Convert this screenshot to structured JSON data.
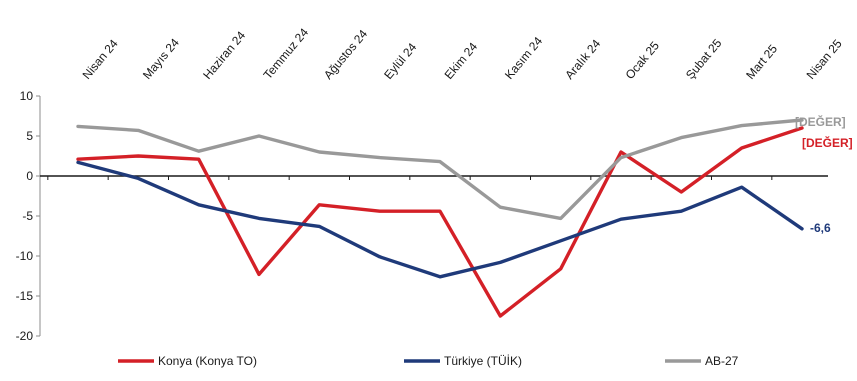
{
  "chart_data": {
    "type": "line",
    "title": "",
    "xlabel": "",
    "ylabel": "",
    "categories": [
      "Nisan 24",
      "Mayıs 24",
      "Haziran 24",
      "Temmuz 24",
      "Ağustos 24",
      "Eylül 24",
      "Ekim 24",
      "Kasım 24",
      "Aralık 24",
      "Ocak 25",
      "Şubat 25",
      "Mart 25",
      "Nisan 25"
    ],
    "ylim": [
      -20,
      10
    ],
    "yticks": [
      "10",
      "5",
      "0",
      "-5",
      "-10",
      "-15",
      "-20"
    ],
    "legend_position": "bottom",
    "series": [
      {
        "name": "Konya (Konya TO)",
        "color": "#d42027",
        "values": [
          2.1,
          2.5,
          2.1,
          -12.3,
          -3.6,
          -4.4,
          -4.4,
          -17.5,
          -11.6,
          3.0,
          -2.0,
          3.5,
          6.0
        ],
        "end_label": "[DEĞER]"
      },
      {
        "name": "Türkiye (TÜİK)",
        "color": "#1f3a7a",
        "values": [
          1.7,
          -0.3,
          -3.6,
          -5.3,
          -6.3,
          -10.1,
          -12.6,
          -10.8,
          -8.1,
          -5.4,
          -4.4,
          -1.4,
          -6.6
        ],
        "end_label": "-6,6"
      },
      {
        "name": "AB-27",
        "color": "#999999",
        "values": [
          6.2,
          5.7,
          3.1,
          5.0,
          3.0,
          2.3,
          1.8,
          -3.9,
          -5.3,
          2.3,
          4.8,
          6.3,
          7.0
        ],
        "end_label": "[DEĞER]"
      }
    ]
  }
}
